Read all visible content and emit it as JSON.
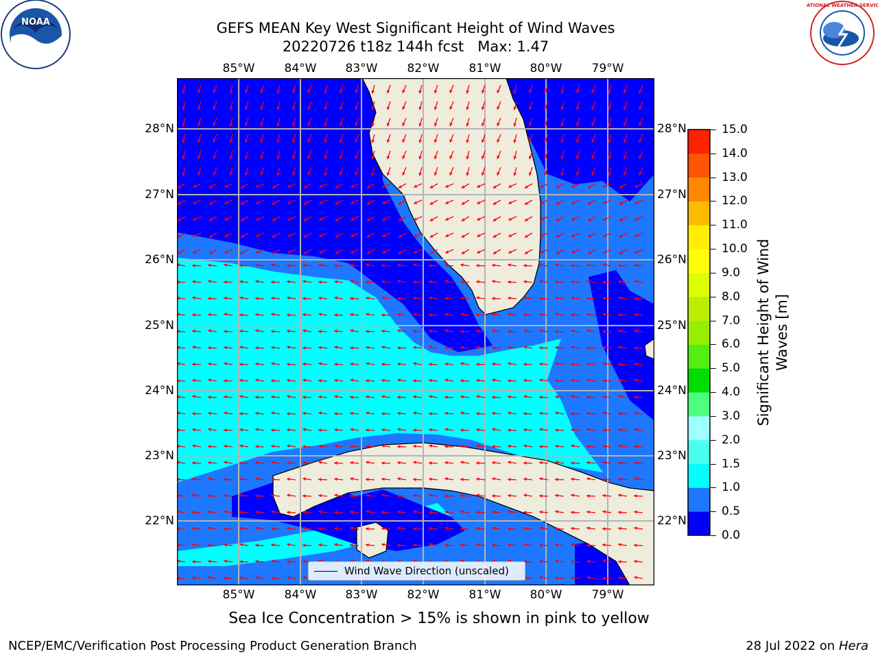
{
  "title_line1": "GEFS MEAN Key West Significant Height of Wind Waves",
  "title_line2": "20220726 t18z 144h fcst",
  "title_max": "Max: 1.47",
  "lon_labels": [
    "85°W",
    "84°W",
    "83°W",
    "82°W",
    "81°W",
    "80°W",
    "79°W"
  ],
  "lat_labels": [
    "28°N",
    "27°N",
    "26°N",
    "25°N",
    "24°N",
    "23°N",
    "22°N"
  ],
  "legend_label": "Wind Wave Direction (unscaled)",
  "colorbar": {
    "title_line1": "Significant Height of Wind",
    "title_line2": "Waves [m]",
    "ticks": [
      "0.0",
      "0.5",
      "1.0",
      "1.5",
      "2.0",
      "3.0",
      "4.0",
      "5.0",
      "6.0",
      "7.0",
      "8.0",
      "9.0",
      "10.0",
      "11.0",
      "12.0",
      "13.0",
      "14.0",
      "15.0"
    ],
    "colors": [
      "#0000ff",
      "#1e78ff",
      "#00ffff",
      "#4affee",
      "#a0ffff",
      "#4dff80",
      "#00dd00",
      "#55ee11",
      "#99ee00",
      "#bbee00",
      "#ddff00",
      "#ffff00",
      "#ffee00",
      "#ffbb00",
      "#ff8800",
      "#ff5500",
      "#ff2200"
    ]
  },
  "sea_ice_note": "Sea Ice Concentration > 15% is shown in pink to yellow",
  "credit_left": "NCEP/EMC/Verification Post Processing Product Generation Branch",
  "credit_date": "28 Jul 2022 on",
  "credit_host": "Hera",
  "logos": {
    "noaa": "NOAA",
    "nws": "NATIONAL WEATHER SERVICE"
  },
  "colors": {
    "land": "#eeecdc",
    "band_0_0_5": "#0000ff",
    "band_0_5_1_0": "#1e78ff",
    "band_1_0_1_5": "#00ffff",
    "arrow": "#ff0000",
    "grid": "#b4b4b4"
  }
}
